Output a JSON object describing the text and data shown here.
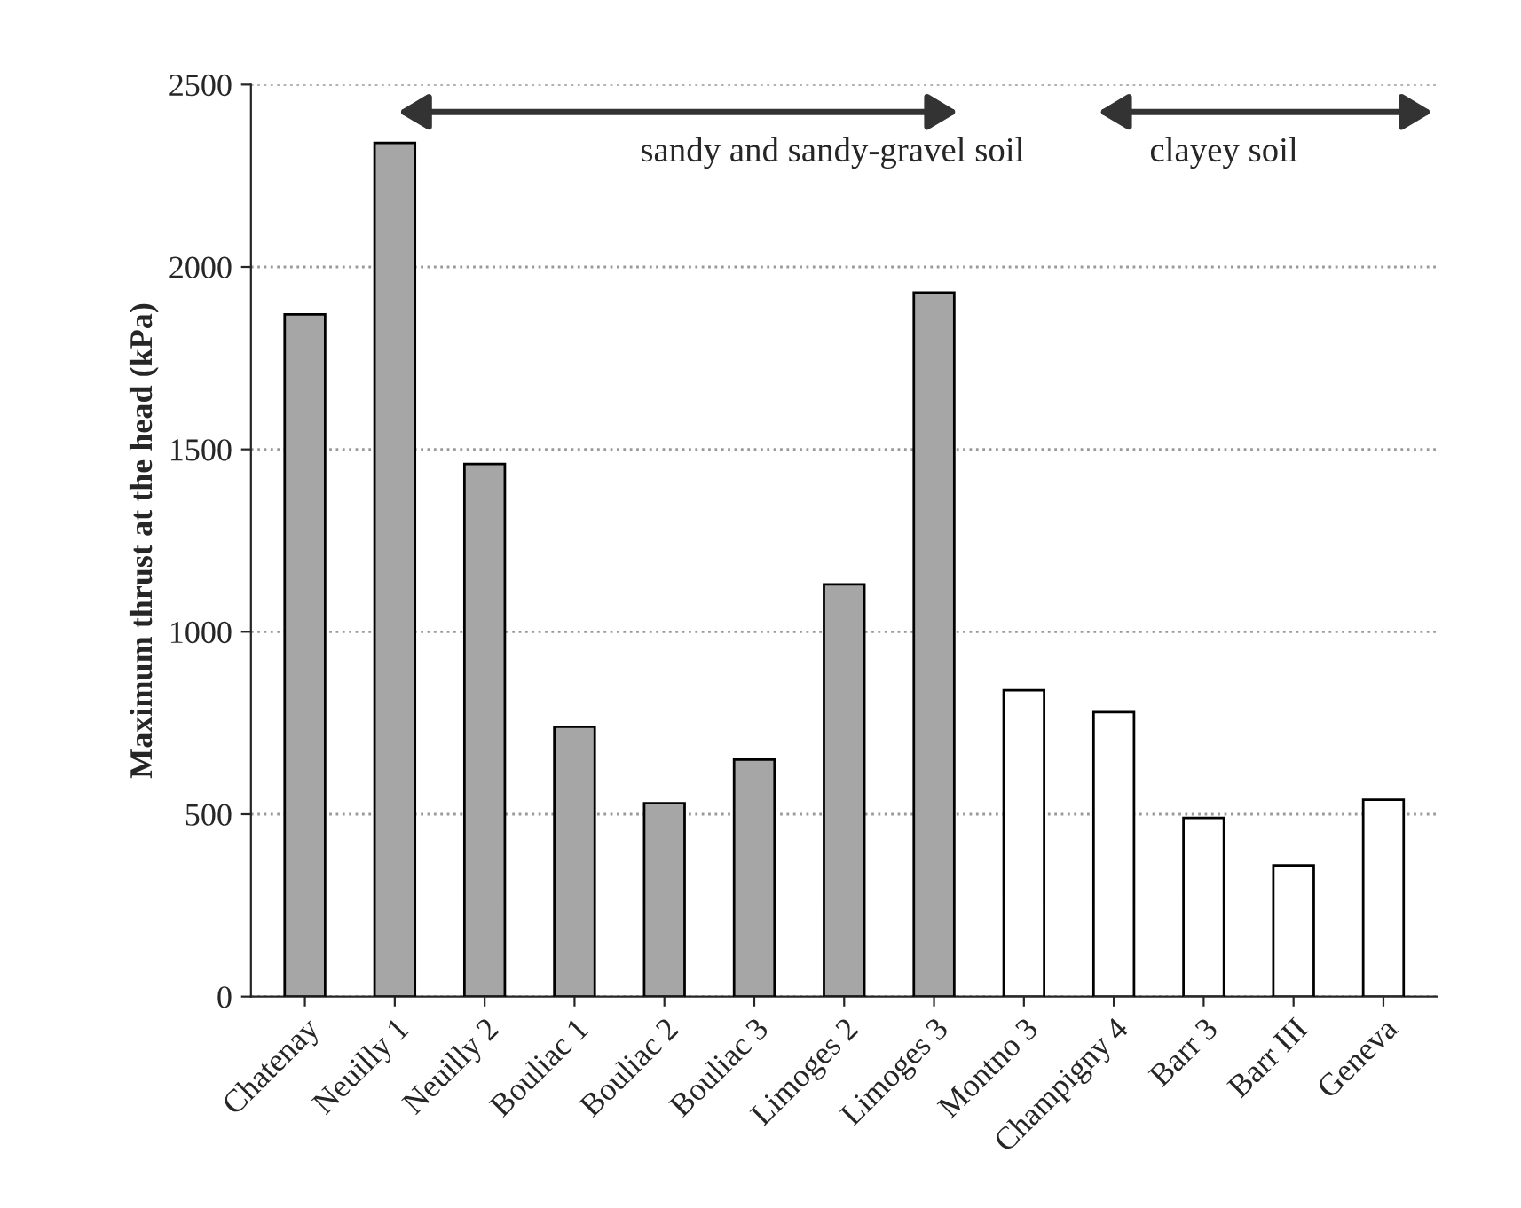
{
  "chart_data": {
    "type": "bar",
    "ylabel": "Maximum thrust at the head (kPa)",
    "categories": [
      "Chatenay",
      "Neuilly 1",
      "Neuilly 2",
      "Bouliac 1",
      "Bouliac 2",
      "Bouliac 3",
      "Limoges 2",
      "Limoges 3",
      "Montno 3",
      "Champigny 4",
      "Barr 3",
      "Barr III",
      "Geneva"
    ],
    "values": [
      1870,
      2340,
      1460,
      740,
      530,
      650,
      1130,
      1930,
      840,
      780,
      490,
      360,
      540
    ],
    "colors": [
      "#a6a6a6",
      "#a6a6a6",
      "#a6a6a6",
      "#a6a6a6",
      "#a6a6a6",
      "#a6a6a6",
      "#a6a6a6",
      "#a6a6a6",
      "#ffffff",
      "#ffffff",
      "#ffffff",
      "#ffffff",
      "#ffffff"
    ],
    "ylim": [
      0,
      2500
    ],
    "yticks": [
      0,
      500,
      1000,
      1500,
      2000,
      2500
    ],
    "grid": "y",
    "annotations": [
      "sandy and sandy-gravel soil",
      "clayey soil"
    ]
  }
}
